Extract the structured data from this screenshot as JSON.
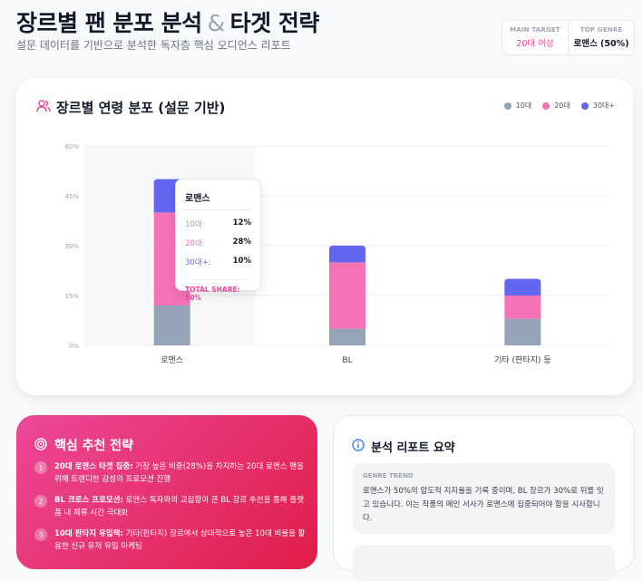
{
  "header": {
    "title_part1": "장르별 팬 분포 분석",
    "title_amp": "&",
    "title_part2": "타겟 전략",
    "subtitle": "설문 데이터를 기반으로 분석한 독자층 핵심 오디언스 리포트"
  },
  "badges": {
    "main_target_label": "MAIN TARGET",
    "main_target_value": "20대 여성",
    "top_genre_label": "TOP GENRE",
    "top_genre_value": "로맨스 (50%)"
  },
  "chart_section": {
    "title": "장르별 연령 분포 (설문 기반)"
  },
  "chart_data": {
    "type": "bar",
    "stacked": true,
    "categories": [
      "로맨스",
      "BL",
      "기타 (판타지) 등"
    ],
    "series": [
      {
        "name": "10대",
        "values": [
          12,
          5,
          8
        ],
        "color": "#94a3b8"
      },
      {
        "name": "20대",
        "values": [
          28,
          20,
          7
        ],
        "color": "#f472b6"
      },
      {
        "name": "30대+",
        "values": [
          10,
          5,
          5
        ],
        "color": "#6366f1"
      }
    ],
    "yticks": [
      "0%",
      "15%",
      "30%",
      "45%",
      "60%"
    ],
    "ylim": [
      0,
      60
    ],
    "legend_position": "top-right",
    "grid": true
  },
  "tooltip": {
    "title": "로맨스",
    "rows": [
      {
        "label": "10대:",
        "value": "12%",
        "color": "#94a3b8"
      },
      {
        "label": "20대:",
        "value": "28%",
        "color": "#f472b6"
      },
      {
        "label": "30대+:",
        "value": "10%",
        "color": "#6366f1"
      }
    ],
    "total": "TOTAL SHARE: 50%"
  },
  "strategy": {
    "title": "핵심 추천 전략",
    "items": [
      {
        "num": "1",
        "bold": "20대 로맨스 타겟 집중:",
        "text": " 가장 높은 비중(28%)을 차지하는 20대 로맨스 팬을 위해 트렌디한 감성의 프로모션 진행"
      },
      {
        "num": "2",
        "bold": "BL 크로스 프로모션:",
        "text": " 로맨스 독자와의 교집합이 큰 BL 장르 추천을 통해 플랫폼 내 체류 시간 극대화"
      },
      {
        "num": "3",
        "bold": "10대 판타지 유입책:",
        "text": " 기타(판타지) 장르에서 상대적으로 높은 10대 비율을 활용한 신규 유저 유입 마케팅"
      }
    ]
  },
  "report": {
    "title": "분석 리포트 요약",
    "trend_label": "GENRE TREND",
    "trend_text": "로맨스가 50%의 압도적 지지율을 기록 중이며, BL 장르가 30%로 뒤를 잇고 있습니다. 이는 작품의 메인 서사가 로맨스에 집중되어야 함을 시사합니다."
  },
  "colors": {
    "accent_pink": "#ec4899",
    "accent_red": "#e11d48"
  }
}
